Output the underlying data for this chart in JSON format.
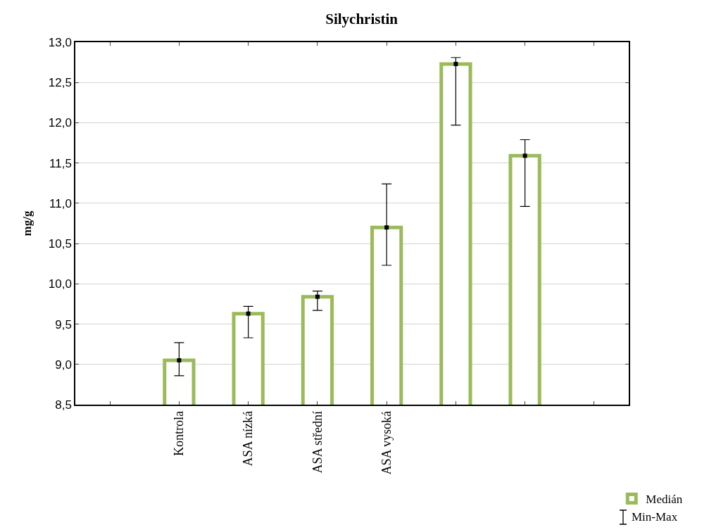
{
  "chart_data": {
    "type": "bar",
    "title": "Silychristin",
    "ylabel": "mg/g",
    "categories": [
      null,
      "Kontrola",
      "ASA nízká",
      "ASA střední",
      "ASA vysoká",
      null,
      null,
      null
    ],
    "series": [
      {
        "name": "Medián",
        "color": "#9bbb59",
        "values": [
          null,
          9.05,
          9.63,
          9.84,
          10.7,
          12.73,
          11.59,
          null
        ]
      },
      {
        "type": "scatter",
        "color": "#000000",
        "values": [
          null,
          9.05,
          9.63,
          9.84,
          10.7,
          12.73,
          11.59,
          null
        ],
        "errors": [
          null,
          [
            8.86,
            9.27
          ],
          [
            9.33,
            9.72
          ],
          [
            9.67,
            9.91
          ],
          [
            10.23,
            11.24
          ],
          [
            11.97,
            12.81
          ],
          [
            10.96,
            11.79
          ],
          null
        ]
      }
    ],
    "marker": "square",
    "ylim": [
      8.5,
      13.0
    ],
    "yticks": [
      {
        "value": 8.5,
        "label": "8,5"
      },
      {
        "value": 9.0,
        "label": "9,0"
      },
      {
        "value": 9.5,
        "label": "9,5"
      },
      {
        "value": 10.0,
        "label": "10,0"
      },
      {
        "value": 10.5,
        "label": "10,5"
      },
      {
        "value": 11.0,
        "label": "11,0"
      },
      {
        "value": 11.5,
        "label": "11,5"
      },
      {
        "value": 12.0,
        "label": "12,0"
      },
      {
        "value": 12.5,
        "label": "12,5"
      },
      {
        "value": 13.0,
        "label": "13,0"
      }
    ],
    "grid": "y",
    "legend": "bottom right",
    "annotations": [
      "Min-Max"
    ]
  }
}
